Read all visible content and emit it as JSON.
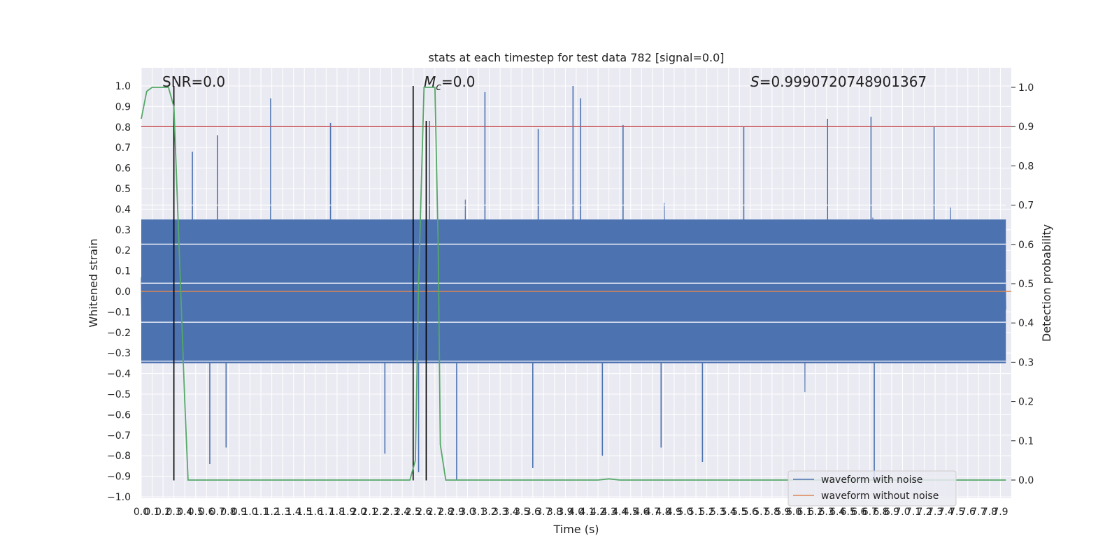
{
  "chart_data": {
    "type": "line",
    "title": "stats at each timestep for test data 782 [signal=0.0]",
    "xlabel": "Time (s)",
    "ylabel_left": "Whitened strain",
    "ylabel_right": "Detection probability",
    "xlim": [
      0.0,
      8.0
    ],
    "ylim_left": [
      -1.05,
      1.05
    ],
    "ylim_right": [
      -0.02,
      1.02
    ],
    "grid": true,
    "x_tick_labels": [
      "0.0",
      "0.1",
      "0.2",
      "0.3",
      "0.4",
      "0.5",
      "0.6",
      "0.7",
      "0.8",
      "0.9",
      "1.0",
      "1.1",
      "1.2",
      "1.3",
      "1.4",
      "1.5",
      "1.6",
      "1.7",
      "1.8",
      "1.9",
      "2.0",
      "2.1",
      "2.2",
      "2.3",
      "2.4",
      "2.5",
      "2.6",
      "2.7",
      "2.8",
      "2.9",
      "3.0",
      "3.1",
      "3.2",
      "3.3",
      "3.4",
      "3.5",
      "3.6",
      "3.7",
      "3.8",
      "3.9",
      "4.0",
      "4.1",
      "4.2",
      "4.3",
      "4.4",
      "4.5",
      "4.6",
      "4.7",
      "4.8",
      "4.9",
      "5.0",
      "5.1",
      "5.2",
      "5.3",
      "5.4",
      "5.5",
      "5.6",
      "5.7",
      "5.8",
      "5.9",
      "6.0",
      "6.1",
      "6.2",
      "6.3",
      "6.4",
      "6.5",
      "6.6",
      "6.7",
      "6.8",
      "6.9",
      "7.0",
      "7.1",
      "7.2",
      "7.3",
      "7.4",
      "7.5",
      "7.6",
      "7.7",
      "7.8",
      "7.9"
    ],
    "y_tick_labels_left": [
      "−1.0",
      "−0.9",
      "−0.8",
      "−0.7",
      "−0.6",
      "−0.5",
      "−0.4",
      "−0.3",
      "−0.2",
      "−0.1",
      "0.0",
      "0.1",
      "0.2",
      "0.3",
      "0.4",
      "0.5",
      "0.6",
      "0.7",
      "0.8",
      "0.9",
      "1.0"
    ],
    "y_tick_labels_right": [
      "0.0",
      "0.1",
      "0.2",
      "0.3",
      "0.4",
      "0.5",
      "0.6",
      "0.7",
      "0.8",
      "0.9",
      "1.0"
    ],
    "annotations": {
      "snr": "SNR=0.0",
      "mc_symbol": "M",
      "mc_sub": "c",
      "mc_value": "=0.0",
      "s_symbol": "S",
      "s_value": "=0.9990720748901367"
    },
    "legend": {
      "placement": "lower-right",
      "entries": [
        {
          "label": "waveform with noise",
          "color": "#4c72b0"
        },
        {
          "label": "waveform without noise",
          "color": "#dd8452"
        }
      ]
    },
    "series": [
      {
        "name": "waveform with noise",
        "axis": "left",
        "color": "#4c72b0",
        "style": "noise",
        "baseline_range": [
          -0.35,
          0.35
        ],
        "peak_upper": [
          {
            "x": 1.19,
            "y": 0.94
          },
          {
            "x": 3.16,
            "y": 0.97
          },
          {
            "x": 3.97,
            "y": 1.0
          },
          {
            "x": 4.04,
            "y": 0.94
          },
          {
            "x": 1.74,
            "y": 0.82
          },
          {
            "x": 6.31,
            "y": 0.84
          },
          {
            "x": 6.71,
            "y": 0.85
          },
          {
            "x": 2.65,
            "y": 0.83
          },
          {
            "x": 4.43,
            "y": 0.81
          },
          {
            "x": 5.54,
            "y": 0.8
          },
          {
            "x": 7.29,
            "y": 0.8
          },
          {
            "x": 0.47,
            "y": 0.68
          },
          {
            "x": 0.7,
            "y": 0.76
          },
          {
            "x": 3.65,
            "y": 0.79
          }
        ],
        "peak_lower": [
          {
            "x": 0.63,
            "y": -0.84
          },
          {
            "x": 2.24,
            "y": -0.79
          },
          {
            "x": 2.9,
            "y": -0.92
          },
          {
            "x": 3.6,
            "y": -0.86
          },
          {
            "x": 4.24,
            "y": -0.8
          },
          {
            "x": 5.16,
            "y": -0.83
          },
          {
            "x": 6.74,
            "y": -0.92
          },
          {
            "x": 4.78,
            "y": -0.76
          },
          {
            "x": 0.78,
            "y": -0.76
          },
          {
            "x": 2.55,
            "y": -0.88
          }
        ]
      },
      {
        "name": "waveform without noise",
        "axis": "left",
        "color": "#dd8452",
        "x": [
          0.0,
          8.0
        ],
        "y": [
          0.0,
          0.0
        ]
      },
      {
        "name": "",
        "axis": "right",
        "color": "#55a868",
        "x": [
          0.0,
          0.05,
          0.1,
          0.25,
          0.3,
          0.4,
          0.43,
          0.6,
          2.4,
          2.47,
          2.52,
          2.55,
          2.6,
          2.65,
          2.7,
          2.73,
          2.75,
          2.8,
          2.9,
          4.2,
          4.3,
          4.4,
          7.95
        ],
        "y": [
          0.92,
          0.99,
          1.0,
          1.0,
          0.95,
          0.2,
          0.0,
          0.0,
          0.0,
          0.0,
          0.05,
          0.5,
          1.0,
          1.0,
          1.0,
          0.6,
          0.09,
          0.0,
          0.0,
          0.0,
          0.003,
          0.0,
          0.0
        ]
      }
    ],
    "threshold_line": {
      "axis": "right",
      "y": 0.9,
      "color": "#c44e52"
    },
    "vertical_lines": [
      {
        "x": 0.3,
        "y_from": -0.92,
        "y_to": 1.0,
        "color": "#000000"
      },
      {
        "x": 2.5,
        "y_from": -0.92,
        "y_to": 1.0,
        "color": "#000000"
      },
      {
        "x": 2.62,
        "y_from": -0.92,
        "y_to": 0.83,
        "color": "#000000"
      }
    ]
  }
}
